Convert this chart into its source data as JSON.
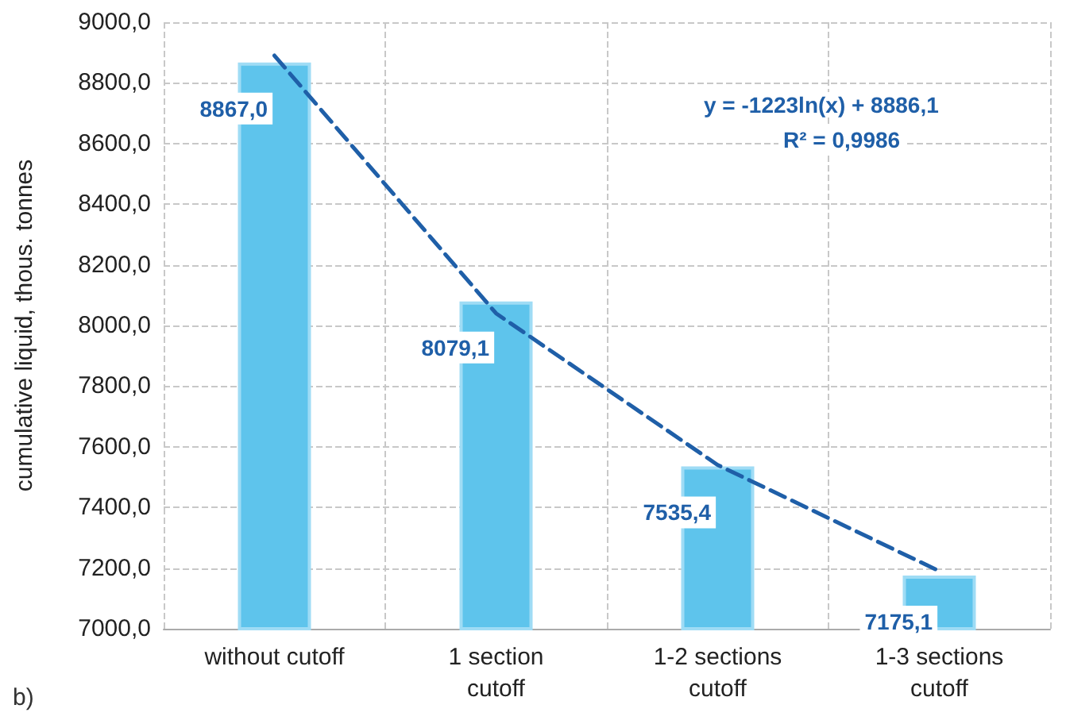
{
  "chart_data": {
    "type": "bar",
    "ylabel": "cumulative liquid, thous. tonnes",
    "categories": [
      "without cutoff",
      "1 section\ncutoff",
      "1-2 sections\ncutoff",
      "1-3 sections\ncutoff"
    ],
    "series": [
      {
        "color": "#5ec4ec",
        "values": [
          8867.0,
          8079.1,
          7535.4,
          7175.1
        ],
        "value_labels": [
          "8867,0",
          "8079,1",
          "7535,4",
          "7175,1"
        ]
      },
      {
        "type": "line",
        "color": "#1f5fa8",
        "line_style": "dashed",
        "marker": "none",
        "x": [
          "without cutoff",
          "1 section\ncutoff",
          "1-2 sections\ncutoff",
          "1-3 sections\ncutoff"
        ],
        "values": [
          8890,
          8040,
          7540,
          7190
        ]
      }
    ],
    "ylim": [
      7000,
      9000
    ],
    "yticks": [
      {
        "value": 7000,
        "label": "7000,0"
      },
      {
        "value": 7200,
        "label": "7200,0"
      },
      {
        "value": 7400,
        "label": "7400,0"
      },
      {
        "value": 7600,
        "label": "7600,0"
      },
      {
        "value": 7800,
        "label": "7800,0"
      },
      {
        "value": 8000,
        "label": "8000,0"
      },
      {
        "value": 8200,
        "label": "8200,0"
      },
      {
        "value": 8400,
        "label": "8400,0"
      },
      {
        "value": 8600,
        "label": "8600,0"
      },
      {
        "value": 8800,
        "label": "8800,0"
      },
      {
        "value": 9000,
        "label": "9000,0"
      }
    ],
    "grid": true,
    "annotations": [
      "y = -1223ln(x) + 8886,1",
      "R² = 0,9986",
      "b)"
    ]
  }
}
